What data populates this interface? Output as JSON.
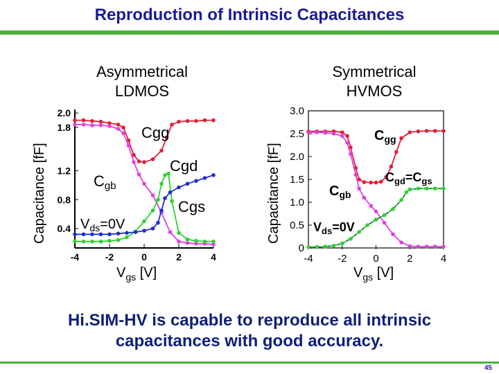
{
  "title": "Reproduction of Intrinsic Capacitances",
  "conclusion": "Hi.SIM-HV is capable to reproduce all intrinsic\ncapacitances with good accuracy.",
  "page_number": "45",
  "colors": {
    "title": "#1a1a9a",
    "rule": "#4caf3a",
    "cgg": "#e0203a",
    "cgb": "#e040e0",
    "cgd": "#30d030",
    "cgs": "#2030d0"
  },
  "chart_data": [
    {
      "type": "line",
      "title": "Asymmetrical\nLDMOS",
      "xlabel": "V",
      "xlabel_sub": "gs",
      "xlabel_unit": " [V]",
      "ylabel": "Capacitance [fF]",
      "xlim": [
        -4,
        4
      ],
      "ylim": [
        0.15,
        2.05
      ],
      "xticks": [
        -4,
        -2,
        0,
        2,
        4
      ],
      "xtick_labels": [
        "-4",
        "-2",
        "0",
        "2",
        "4"
      ],
      "yticks": [
        0.4,
        0.8,
        1.2,
        1.8,
        2.0
      ],
      "ytick_labels": [
        "0.4",
        "0.8",
        "1.2",
        "1.8",
        "2.0"
      ],
      "grid": false,
      "annotations": {
        "cgg": "Cgg",
        "cgd": "Cgd",
        "cgb_main": "C",
        "cgb_sub": "gb",
        "cgs": "Cgs",
        "vds_main": "V",
        "vds_sub": "ds",
        "vds_rest": "=0V"
      },
      "series": [
        {
          "label": "Cgg",
          "color": "#e0203a",
          "x": [
            -4,
            -3.5,
            -3,
            -2.5,
            -2,
            -1.5,
            -1.2,
            -0.9,
            -0.6,
            -0.3,
            0,
            0.5,
            1,
            1.3,
            1.6,
            2,
            2.5,
            3,
            3.5,
            4
          ],
          "y": [
            1.9,
            1.9,
            1.89,
            1.88,
            1.86,
            1.84,
            1.8,
            1.62,
            1.42,
            1.33,
            1.32,
            1.36,
            1.48,
            1.66,
            1.84,
            1.88,
            1.89,
            1.89,
            1.9,
            1.9
          ]
        },
        {
          "label": "Cgb",
          "color": "#e040e0",
          "x": [
            -4,
            -3.5,
            -3,
            -2.5,
            -2,
            -1.5,
            -1.2,
            -0.9,
            -0.6,
            -0.3,
            0,
            0.5,
            1,
            1.5,
            2,
            2.5,
            3,
            3.5,
            4
          ],
          "y": [
            1.84,
            1.84,
            1.83,
            1.83,
            1.82,
            1.78,
            1.72,
            1.55,
            1.32,
            1.15,
            1.02,
            0.86,
            0.62,
            0.35,
            0.22,
            0.2,
            0.19,
            0.19,
            0.18
          ]
        },
        {
          "label": "Cgd",
          "color": "#30d030",
          "x": [
            -4,
            -3.5,
            -3,
            -2.5,
            -2,
            -1.5,
            -1,
            -0.5,
            0,
            0.5,
            0.8,
            1,
            1.2,
            1.4,
            1.6,
            2,
            2.5,
            3,
            3.5,
            4
          ],
          "y": [
            0.22,
            0.22,
            0.22,
            0.22,
            0.23,
            0.24,
            0.28,
            0.36,
            0.5,
            0.65,
            0.8,
            1.02,
            1.14,
            1.16,
            0.78,
            0.34,
            0.25,
            0.23,
            0.22,
            0.22
          ]
        },
        {
          "label": "Cgs",
          "color": "#2030d0",
          "x": [
            -4,
            -3.5,
            -3,
            -2.5,
            -2,
            -1.5,
            -1,
            -0.5,
            0,
            0.5,
            0.8,
            1,
            1.2,
            1.5,
            2,
            2.5,
            3,
            3.5,
            4
          ],
          "y": [
            0.32,
            0.32,
            0.32,
            0.32,
            0.32,
            0.33,
            0.34,
            0.35,
            0.37,
            0.4,
            0.48,
            0.65,
            0.82,
            0.9,
            0.97,
            1.02,
            1.06,
            1.1,
            1.14
          ]
        }
      ]
    },
    {
      "type": "line",
      "title": "Symmetrical\nHVMOS",
      "xlabel": "V",
      "xlabel_sub": "gs",
      "xlabel_unit": " [V]",
      "ylabel": "Capacitance [fF]",
      "xlim": [
        -4,
        4
      ],
      "ylim": [
        0,
        3.0
      ],
      "xticks": [
        -4,
        -2,
        0,
        2,
        4
      ],
      "xtick_labels": [
        "-4",
        "-2",
        "0",
        "2",
        "4"
      ],
      "yticks": [
        0,
        0.5,
        1.0,
        1.5,
        2.0,
        2.5,
        3.0
      ],
      "ytick_labels": [
        "0",
        "0.5",
        "1.0",
        "1.5",
        "2.0",
        "2.5",
        "3.0"
      ],
      "grid": false,
      "annotations": {
        "cgg_main": "C",
        "cgg_sub": "gg",
        "cgd_main": "C",
        "cgd_sub": "gd",
        "eq_main": "=C",
        "cgs_sub": "gs",
        "cgb_main": "C",
        "cgb_sub": "gb",
        "vds_main": "V",
        "vds_sub": "ds",
        "vds_rest": "=0V"
      },
      "series": [
        {
          "label": "Cgg",
          "color": "#e0203a",
          "x": [
            -4,
            -3.5,
            -3,
            -2.5,
            -2,
            -1.7,
            -1.5,
            -1.2,
            -1,
            -0.7,
            -0.3,
            0,
            0.3,
            0.6,
            0.9,
            1.2,
            1.5,
            2,
            2.5,
            3,
            3.5,
            4
          ],
          "y": [
            2.55,
            2.55,
            2.55,
            2.55,
            2.53,
            2.45,
            2.2,
            1.75,
            1.5,
            1.44,
            1.43,
            1.43,
            1.45,
            1.55,
            1.78,
            2.1,
            2.4,
            2.53,
            2.55,
            2.56,
            2.56,
            2.56
          ]
        },
        {
          "label": "Cgb",
          "color": "#e040e0",
          "x": [
            -4,
            -3.5,
            -3,
            -2.5,
            -2,
            -1.7,
            -1.5,
            -1.2,
            -1,
            -0.7,
            -0.3,
            0,
            0.5,
            1,
            1.5,
            2,
            2.5,
            3,
            3.5,
            4
          ],
          "y": [
            2.53,
            2.53,
            2.52,
            2.5,
            2.45,
            2.3,
            2.05,
            1.6,
            1.3,
            1.1,
            0.92,
            0.8,
            0.55,
            0.3,
            0.12,
            0.04,
            0.03,
            0.03,
            0.03,
            0.03
          ]
        },
        {
          "label": "Cgd=Cgs",
          "color": "#30d030",
          "x": [
            -4,
            -3.5,
            -3,
            -2.5,
            -2,
            -1.5,
            -1,
            -0.5,
            0,
            0.5,
            1,
            1.5,
            1.8,
            2,
            2.5,
            3,
            3.5,
            4
          ],
          "y": [
            0.02,
            0.02,
            0.03,
            0.05,
            0.1,
            0.2,
            0.35,
            0.5,
            0.62,
            0.72,
            0.85,
            1.05,
            1.22,
            1.28,
            1.3,
            1.3,
            1.3,
            1.3
          ]
        }
      ]
    }
  ]
}
